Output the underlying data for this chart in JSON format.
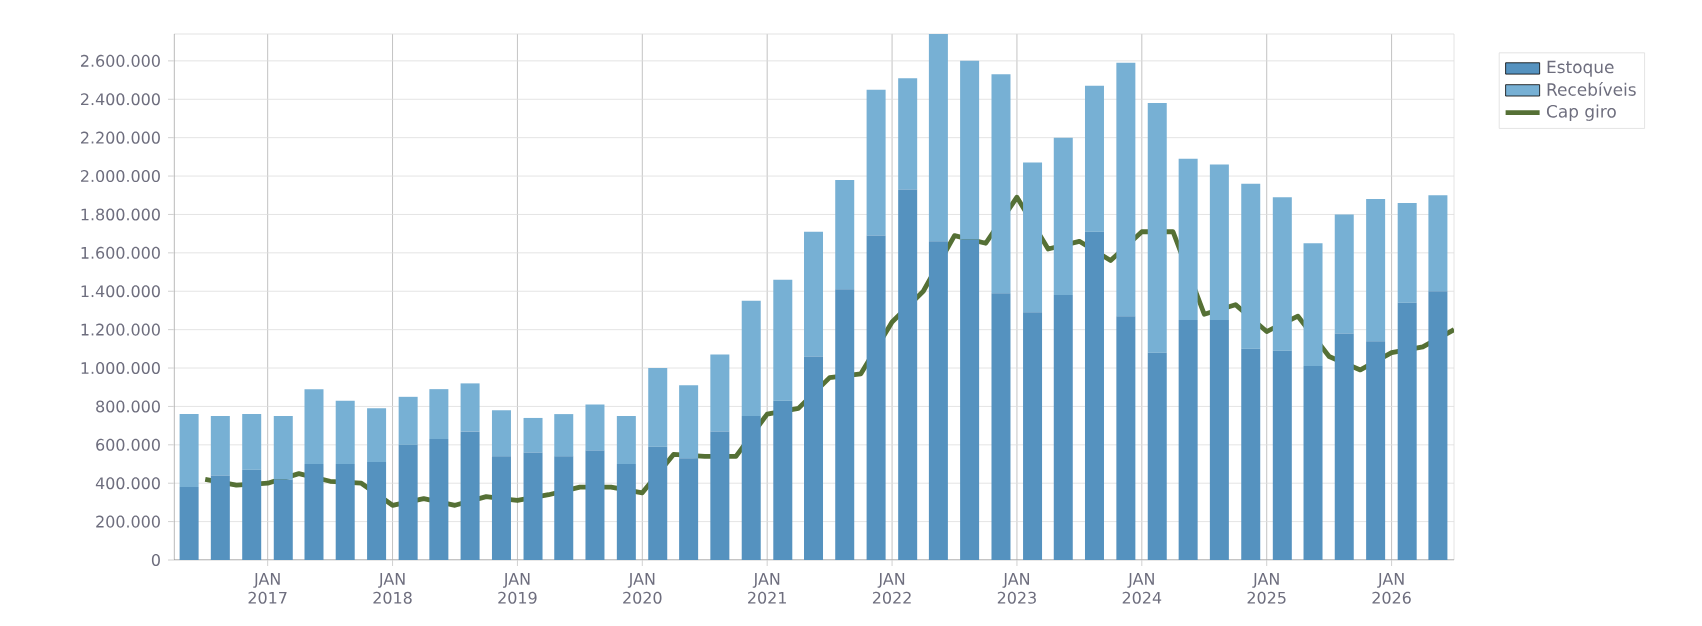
{
  "chart_data": {
    "type": "bar",
    "stacked": true,
    "x": [
      "2016-05-15",
      "2016-08-15",
      "2016-11-15",
      "2017-02-15",
      "2017-05-15",
      "2017-08-15",
      "2017-11-15",
      "2018-02-15",
      "2018-05-15",
      "2018-08-15",
      "2018-11-15",
      "2019-02-15",
      "2019-05-15",
      "2019-08-15",
      "2019-11-15",
      "2020-02-15",
      "2020-05-15",
      "2020-08-15",
      "2020-11-15",
      "2021-02-15",
      "2021-05-15",
      "2021-08-15",
      "2021-11-15",
      "2022-02-15",
      "2022-05-15",
      "2022-08-15",
      "2022-11-15",
      "2023-02-15",
      "2023-05-15",
      "2023-08-15",
      "2023-11-15",
      "2024-02-15",
      "2024-05-15",
      "2024-08-15",
      "2024-11-15",
      "2025-02-15",
      "2025-05-15",
      "2025-08-15",
      "2025-11-15",
      "2026-02-15",
      "2026-05-15"
    ],
    "series": [
      {
        "name": "Estoque",
        "color": "#5592bf",
        "values": [
          380000,
          440000,
          470000,
          420000,
          500000,
          500000,
          510000,
          600000,
          630000,
          670000,
          540000,
          560000,
          540000,
          570000,
          500000,
          590000,
          530000,
          670000,
          750000,
          830000,
          1060000,
          1410000,
          1690000,
          1930000,
          1660000,
          1670000,
          1390000,
          1290000,
          1380000,
          1710000,
          1270000,
          1080000,
          1250000,
          1250000,
          1100000,
          1090000,
          1010000,
          1180000,
          1140000,
          1340000,
          1400000
        ]
      },
      {
        "name": "Recebíveis",
        "color": "#77b0d4",
        "values": [
          380000,
          310000,
          290000,
          330000,
          390000,
          330000,
          280000,
          250000,
          260000,
          250000,
          240000,
          180000,
          220000,
          240000,
          250000,
          410000,
          380000,
          400000,
          600000,
          630000,
          650000,
          570000,
          760000,
          580000,
          1080000,
          930000,
          1140000,
          780000,
          820000,
          760000,
          1320000,
          1300000,
          840000,
          810000,
          860000,
          800000,
          640000,
          620000,
          740000,
          520000,
          500000
        ]
      },
      {
        "name": "Cap giro",
        "type": "line",
        "color": "#557035",
        "x": [
          "2016-07",
          "2016-10",
          "2017-01",
          "2017-04",
          "2017-07",
          "2017-10",
          "2018-01",
          "2018-04",
          "2018-07",
          "2018-10",
          "2019-01",
          "2019-04",
          "2019-07",
          "2019-10",
          "2020-01",
          "2020-04",
          "2020-07",
          "2020-10",
          "2021-01",
          "2021-04",
          "2021-07",
          "2021-10",
          "2022-01",
          "2022-04",
          "2022-07",
          "2022-10",
          "2023-01",
          "2023-04",
          "2023-07",
          "2023-10",
          "2024-01",
          "2024-04",
          "2024-07",
          "2024-10",
          "2025-01",
          "2025-04",
          "2025-07",
          "2025-10",
          "2026-01",
          "2026-04",
          "2026-07"
        ],
        "values": [
          420000,
          390000,
          400000,
          450000,
          410000,
          400000,
          285000,
          320000,
          285000,
          330000,
          310000,
          340000,
          380000,
          380000,
          350000,
          550000,
          540000,
          540000,
          760000,
          790000,
          950000,
          970000,
          1240000,
          1400000,
          1690000,
          1650000,
          1890000,
          1620000,
          1660000,
          1560000,
          1710000,
          1710000,
          1280000,
          1330000,
          1190000,
          1270000,
          1060000,
          990000,
          1080000,
          1110000,
          1200000
        ]
      }
    ],
    "xlim": [
      "2016-04",
      "2026-07"
    ],
    "xticks": [
      {
        "value": "2017-01",
        "label": "JAN 2017"
      },
      {
        "value": "2018-01",
        "label": "JAN 2018"
      },
      {
        "value": "2019-01",
        "label": "JAN 2019"
      },
      {
        "value": "2020-01",
        "label": "JAN 2020"
      },
      {
        "value": "2021-01",
        "label": "JAN 2021"
      },
      {
        "value": "2022-01",
        "label": "JAN 2022"
      },
      {
        "value": "2023-01",
        "label": "JAN 2023"
      },
      {
        "value": "2024-01",
        "label": "JAN 2024"
      },
      {
        "value": "2025-01",
        "label": "JAN 2025"
      },
      {
        "value": "2026-01",
        "label": "JAN 2026"
      }
    ],
    "ylim": [
      0,
      2740000
    ],
    "yticks": [
      0,
      {
        "value": 200000,
        "label": "200.000"
      },
      {
        "value": 400000,
        "label": "400.000"
      },
      {
        "value": 600000,
        "label": "600.000"
      },
      {
        "value": 800000,
        "label": "800.000"
      },
      {
        "value": 1000000,
        "label": "1.000.000"
      },
      {
        "value": 1200000,
        "label": "1.200.000"
      },
      {
        "value": 1400000,
        "label": "1.400.000"
      },
      {
        "value": 1600000,
        "label": "1.600.000"
      },
      {
        "value": 1800000,
        "label": "1.800.000"
      },
      {
        "value": 2000000,
        "label": "2.000.000"
      },
      {
        "value": 2200000,
        "label": "2.200.000"
      },
      {
        "value": 2400000,
        "label": "2.400.000"
      },
      {
        "value": 2600000,
        "label": "2.600.000"
      }
    ],
    "grid": true,
    "legend": "top right"
  }
}
